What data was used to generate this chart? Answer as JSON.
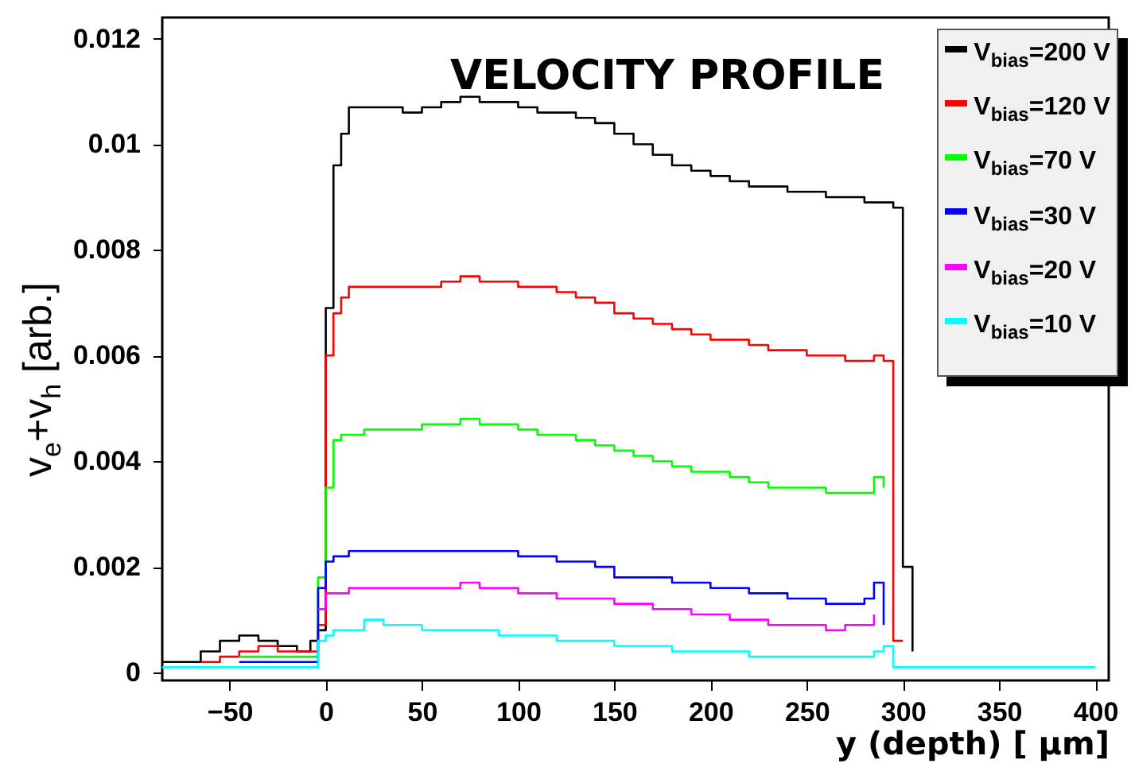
{
  "chart_data": {
    "type": "step",
    "title": "VELOCITY PROFILE",
    "xlabel": "y (depth) [ µm]",
    "ylabel": "v$_{e}$+v$_{h}$ [arb.]",
    "x": [
      -85,
      -75,
      -65,
      -55,
      -45,
      -35,
      -25,
      -15,
      -8,
      -4,
      0,
      4,
      8,
      12,
      20,
      30,
      40,
      50,
      60,
      70,
      80,
      90,
      100,
      110,
      120,
      130,
      140,
      150,
      160,
      170,
      180,
      190,
      200,
      210,
      220,
      230,
      240,
      250,
      260,
      270,
      280,
      285,
      290,
      295,
      300,
      305,
      310,
      320,
      340,
      360,
      380,
      400
    ],
    "xlim": [
      -85,
      407
    ],
    "ylim": [
      -0.00015,
      0.0124
    ],
    "xticks": [
      -50,
      0,
      50,
      100,
      150,
      200,
      250,
      300,
      350,
      400
    ],
    "yticks": [
      0,
      0.002,
      0.004,
      0.006,
      0.008,
      0.01,
      0.012
    ],
    "legend": "top right",
    "grid": false,
    "series": [
      {
        "name": "V$_{bias}$=200 V",
        "color": "#000000",
        "values": [
          0.0002,
          0.0002,
          0.0004,
          0.0006,
          0.0007,
          0.0006,
          0.0005,
          0.0004,
          0.0006,
          0.0008,
          0.0069,
          0.0096,
          0.0102,
          0.0107,
          0.0107,
          0.0107,
          0.0106,
          0.0107,
          0.0108,
          0.0109,
          0.0108,
          0.0108,
          0.0107,
          0.0106,
          0.0106,
          0.0105,
          0.0104,
          0.0102,
          0.01,
          0.0098,
          0.0096,
          0.0095,
          0.0094,
          0.0093,
          0.0092,
          0.0092,
          0.0091,
          0.0091,
          0.009,
          0.009,
          0.0089,
          0.0089,
          0.0089,
          0.0088,
          0.002,
          0.0004,
          null,
          null,
          null,
          null,
          null,
          null
        ]
      },
      {
        "name": "V$_{bias}$=120 V",
        "color": "#ff0000",
        "values": [
          null,
          null,
          0.0002,
          0.0003,
          0.0004,
          0.0005,
          0.0004,
          0.0004,
          0.0004,
          0.0009,
          0.006,
          0.0068,
          0.0071,
          0.0073,
          0.0073,
          0.0073,
          0.0073,
          0.0073,
          0.0074,
          0.0075,
          0.0074,
          0.0074,
          0.0073,
          0.0073,
          0.0072,
          0.0071,
          0.007,
          0.0068,
          0.0067,
          0.0066,
          0.0065,
          0.0064,
          0.0063,
          0.0063,
          0.0062,
          0.0061,
          0.0061,
          0.006,
          0.006,
          0.0059,
          0.0059,
          0.006,
          0.0059,
          0.0006,
          0.0006,
          null,
          null,
          null,
          null,
          null,
          null,
          null
        ]
      },
      {
        "name": "V$_{bias}$=70 V",
        "color": "#00ff00",
        "values": [
          null,
          null,
          null,
          null,
          0.0003,
          0.0003,
          0.0003,
          0.0003,
          0.0003,
          0.0018,
          0.0035,
          0.0044,
          0.0045,
          0.0045,
          0.0046,
          0.0046,
          0.0046,
          0.0047,
          0.0047,
          0.0048,
          0.0047,
          0.0047,
          0.0046,
          0.0045,
          0.0045,
          0.0044,
          0.0043,
          0.0042,
          0.0041,
          0.004,
          0.0039,
          0.0038,
          0.0038,
          0.0037,
          0.0036,
          0.0035,
          0.0035,
          0.0035,
          0.0034,
          0.0034,
          0.0034,
          0.0037,
          0.0035,
          null,
          null,
          null,
          null,
          null,
          null,
          null,
          null,
          null
        ]
      },
      {
        "name": "V$_{bias}$=30 V",
        "color": "#0000ff",
        "values": [
          null,
          null,
          null,
          null,
          0.0002,
          0.0002,
          0.0002,
          0.0002,
          0.0002,
          0.0016,
          0.0021,
          0.0022,
          0.0022,
          0.0023,
          0.0023,
          0.0023,
          0.0023,
          0.0023,
          0.0023,
          0.0023,
          0.0023,
          0.0023,
          0.0022,
          0.0022,
          0.0021,
          0.0021,
          0.002,
          0.0018,
          0.0018,
          0.0018,
          0.0017,
          0.0017,
          0.0016,
          0.0016,
          0.0015,
          0.0015,
          0.0014,
          0.0014,
          0.0013,
          0.0013,
          0.0014,
          0.0017,
          0.0009,
          null,
          null,
          null,
          null,
          null,
          null,
          null,
          null,
          null
        ]
      },
      {
        "name": "V$_{bias}$=20 V",
        "color": "#ff00ff",
        "values": [
          null,
          null,
          null,
          null,
          null,
          null,
          null,
          null,
          null,
          0.0012,
          0.0015,
          0.0015,
          0.0015,
          0.0016,
          0.0016,
          0.0016,
          0.0016,
          0.0016,
          0.0016,
          0.0017,
          0.0016,
          0.0016,
          0.0015,
          0.0015,
          0.0014,
          0.0014,
          0.0014,
          0.0013,
          0.0013,
          0.0012,
          0.0012,
          0.0011,
          0.0011,
          0.001,
          0.001,
          0.0009,
          0.0009,
          0.0009,
          0.0008,
          0.0009,
          0.0009,
          0.0011,
          null,
          null,
          null,
          null,
          null,
          null,
          null,
          null,
          null,
          null
        ]
      },
      {
        "name": "V$_{bias}$=10 V",
        "color": "#00ffff",
        "values": [
          0.0001,
          0.0001,
          0.0001,
          0.0001,
          0.0001,
          0.0001,
          0.0001,
          0.0001,
          0.0001,
          0.0006,
          0.0007,
          0.0008,
          0.0008,
          0.0008,
          0.001,
          0.0009,
          0.0009,
          0.0008,
          0.0008,
          0.0008,
          0.0008,
          0.0007,
          0.0007,
          0.0007,
          0.0006,
          0.0006,
          0.0006,
          0.0005,
          0.0005,
          0.0005,
          0.0004,
          0.0004,
          0.0004,
          0.0004,
          0.0003,
          0.0003,
          0.0003,
          0.0003,
          0.0003,
          0.0003,
          0.0003,
          0.0004,
          0.0005,
          0.0001,
          0.0001,
          0.0001,
          0.0001,
          0.0001,
          0.0001,
          0.0001,
          0.0001,
          0.0001
        ]
      }
    ]
  }
}
